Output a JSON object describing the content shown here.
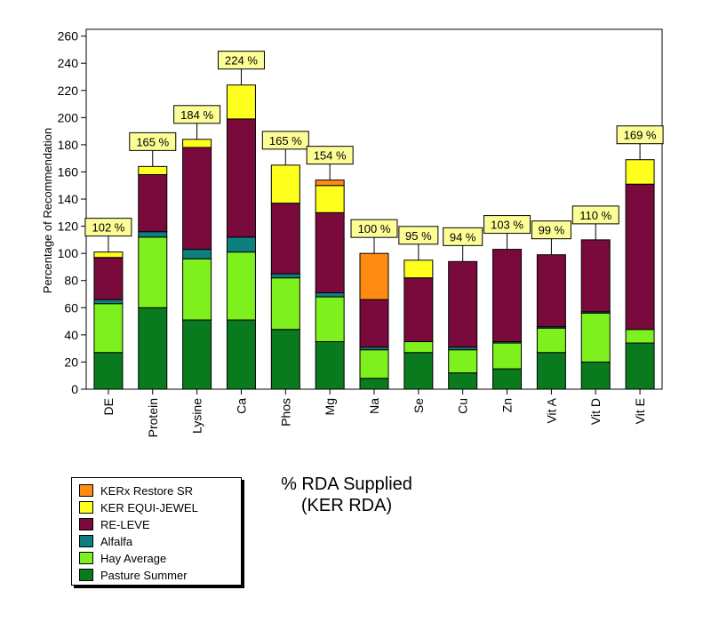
{
  "chart_data": {
    "type": "bar",
    "stacked": true,
    "ylabel": "Percentage of Recommendation",
    "ylim": [
      0,
      265
    ],
    "yticks": [
      0,
      20,
      40,
      60,
      80,
      100,
      120,
      140,
      160,
      180,
      200,
      220,
      240,
      260
    ],
    "grid": false,
    "categories": [
      "DE",
      "Protein",
      "Lysine",
      "Ca",
      "Phos",
      "Mg",
      "Na",
      "Se",
      "Cu",
      "Zn",
      "Vit A",
      "Vit D",
      "Vit E"
    ],
    "series": [
      {
        "name": "Pasture Summer",
        "color": "#0a7a1e",
        "values": [
          27,
          60,
          51,
          51,
          44,
          35,
          8,
          27,
          12,
          15,
          27,
          20,
          34
        ]
      },
      {
        "name": "Hay Average",
        "color": "#7ef01e",
        "values": [
          36,
          52,
          45,
          50,
          38,
          33,
          21,
          8,
          17,
          19,
          18,
          36,
          10
        ]
      },
      {
        "name": "Alfalfa",
        "color": "#0d7f7f",
        "values": [
          3,
          4,
          7,
          11,
          3,
          3,
          2,
          0,
          2,
          1,
          1,
          1,
          0
        ]
      },
      {
        "name": "RE-LEVE",
        "color": "#7a0a3c",
        "values": [
          31,
          42,
          75,
          87,
          52,
          59,
          35,
          47,
          63,
          68,
          53,
          53,
          107
        ]
      },
      {
        "name": "KER EQUI-JEWEL",
        "color": "#ffff1e",
        "values": [
          4,
          6,
          6,
          25,
          28,
          20,
          0,
          13,
          0,
          0,
          0,
          0,
          18
        ]
      },
      {
        "name": "KERx Restore SR",
        "color": "#ff8a14",
        "values": [
          0,
          0,
          0,
          0,
          0,
          4,
          34,
          0,
          0,
          0,
          0,
          0,
          0
        ]
      }
    ],
    "totals": [
      "102 %",
      "165 %",
      "184 %",
      "224 %",
      "165 %",
      "154 %",
      "100 %",
      "95 %",
      "94 %",
      "103 %",
      "99 %",
      "110 %",
      "169 %"
    ],
    "legend_order": [
      "KERx Restore SR",
      "KER EQUI-JEWEL",
      "RE-LEVE",
      "Alfalfa",
      "Hay Average",
      "Pasture Summer"
    ],
    "caption_line1": "% RDA Supplied",
    "caption_line2": "(KER RDA)"
  }
}
